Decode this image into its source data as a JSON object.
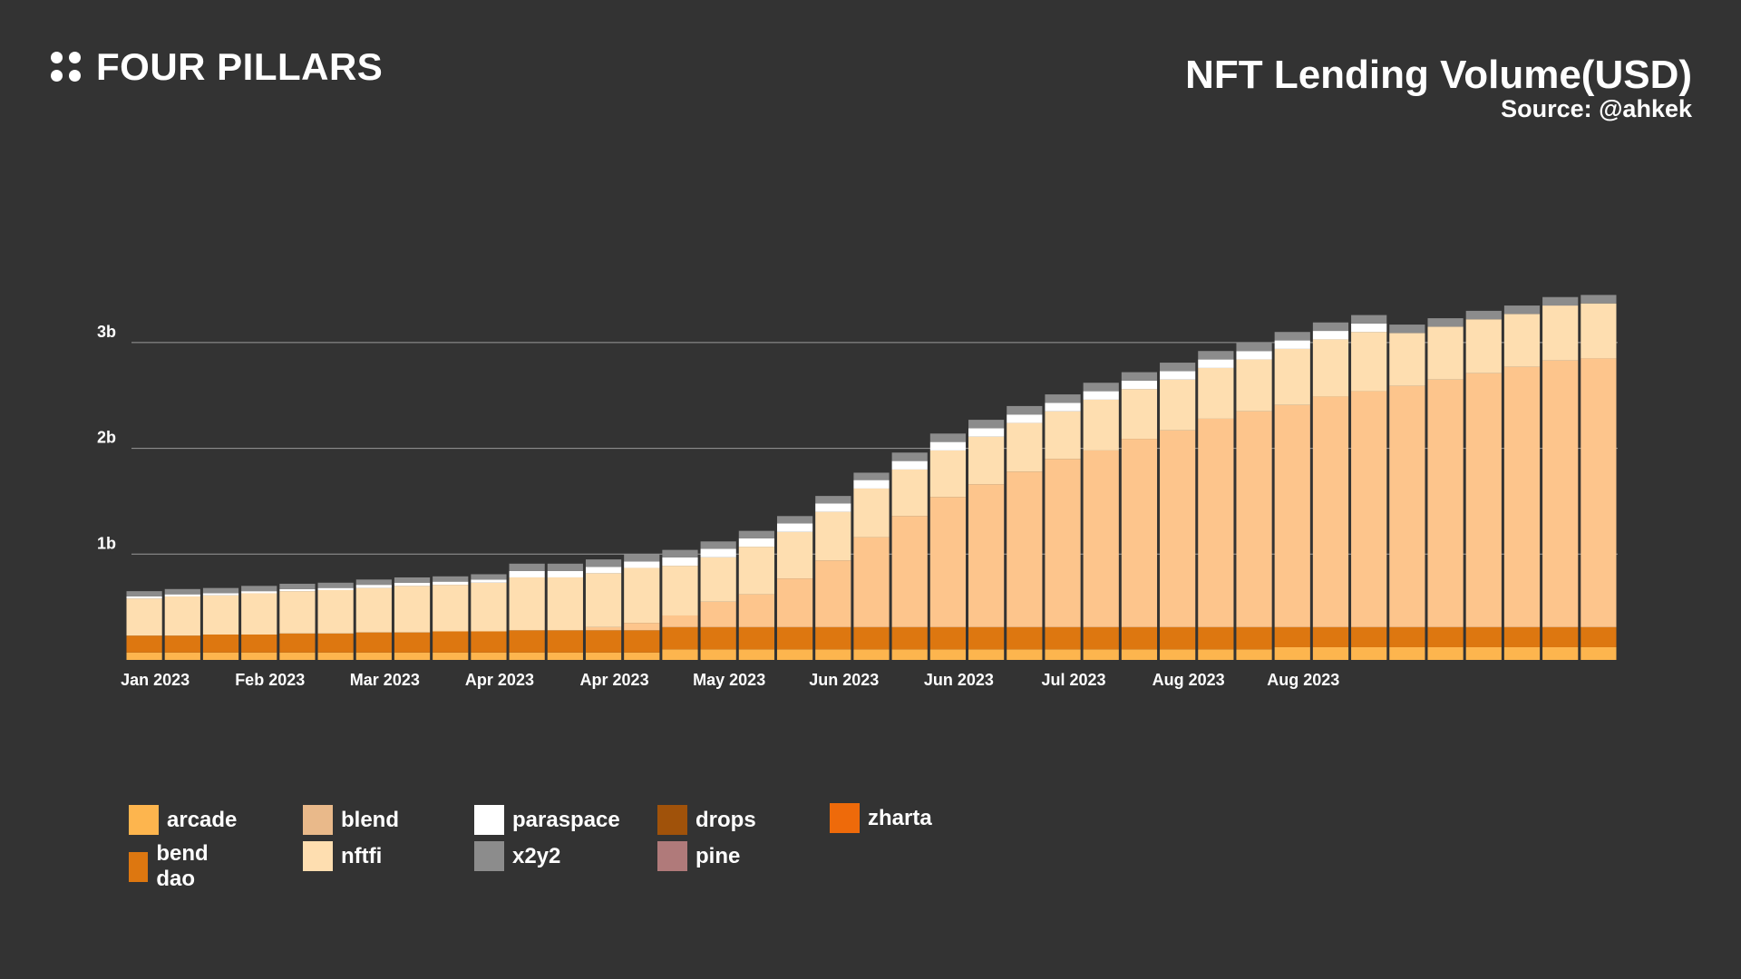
{
  "logo": {
    "text": "FOUR PILLARS"
  },
  "chart_data": {
    "type": "bar",
    "stacked": true,
    "title": "NFT Lending Volume(USD)",
    "subtitle": "Source: @ahkek",
    "xlabel": "",
    "ylabel": "",
    "ylim": [
      0,
      3.6
    ],
    "y_unit": "billion USD",
    "yticks": [
      {
        "value": 1,
        "label": "1b"
      },
      {
        "value": 2,
        "label": "2b"
      },
      {
        "value": 3,
        "label": "3b"
      }
    ],
    "grid": true,
    "legend_position": "bottom",
    "bar_count": 39,
    "xtick_labels": [
      {
        "index": 0,
        "label": "Jan 2023"
      },
      {
        "index": 3,
        "label": "Feb 2023"
      },
      {
        "index": 6,
        "label": "Mar 2023"
      },
      {
        "index": 9,
        "label": "Apr 2023"
      },
      {
        "index": 12,
        "label": "Apr 2023"
      },
      {
        "index": 15,
        "label": "May 2023"
      },
      {
        "index": 18,
        "label": "Jun 2023"
      },
      {
        "index": 21,
        "label": "Jun 2023"
      },
      {
        "index": 24,
        "label": "Jul 2023"
      },
      {
        "index": 27,
        "label": "Aug 2023"
      },
      {
        "index": 30,
        "label": "Aug 2023"
      }
    ],
    "series": [
      {
        "name": "arcade",
        "color": "#FDB54E",
        "values": [
          0.07,
          0.07,
          0.07,
          0.07,
          0.07,
          0.07,
          0.07,
          0.07,
          0.07,
          0.07,
          0.07,
          0.07,
          0.07,
          0.07,
          0.1,
          0.1,
          0.1,
          0.1,
          0.1,
          0.1,
          0.1,
          0.1,
          0.1,
          0.1,
          0.1,
          0.1,
          0.1,
          0.1,
          0.1,
          0.1,
          0.12,
          0.12,
          0.12,
          0.12,
          0.12,
          0.12,
          0.12,
          0.12,
          0.12
        ]
      },
      {
        "name": "bend dao",
        "color": "#DD7710",
        "values": [
          0.16,
          0.16,
          0.17,
          0.17,
          0.18,
          0.18,
          0.19,
          0.19,
          0.2,
          0.2,
          0.21,
          0.21,
          0.21,
          0.21,
          0.21,
          0.21,
          0.21,
          0.21,
          0.21,
          0.21,
          0.21,
          0.21,
          0.21,
          0.21,
          0.21,
          0.21,
          0.21,
          0.21,
          0.21,
          0.21,
          0.19,
          0.19,
          0.19,
          0.19,
          0.19,
          0.19,
          0.19,
          0.19,
          0.19
        ]
      },
      {
        "name": "blend",
        "color": "#FDC58C",
        "values": [
          0,
          0,
          0,
          0,
          0,
          0,
          0,
          0,
          0,
          0,
          0,
          0,
          0.03,
          0.07,
          0.11,
          0.24,
          0.31,
          0.46,
          0.63,
          0.85,
          1.05,
          1.23,
          1.35,
          1.47,
          1.59,
          1.67,
          1.78,
          1.86,
          1.97,
          2.04,
          2.1,
          2.18,
          2.23,
          2.28,
          2.34,
          2.4,
          2.46,
          2.52,
          2.54
        ]
      },
      {
        "name": "nftfi",
        "color": "#FEDEB0",
        "values": [
          0.35,
          0.37,
          0.37,
          0.39,
          0.4,
          0.41,
          0.42,
          0.44,
          0.44,
          0.46,
          0.5,
          0.5,
          0.51,
          0.52,
          0.47,
          0.42,
          0.45,
          0.44,
          0.46,
          0.46,
          0.44,
          0.44,
          0.45,
          0.46,
          0.45,
          0.48,
          0.47,
          0.48,
          0.48,
          0.49,
          0.53,
          0.54,
          0.56,
          0.5,
          0.5,
          0.51,
          0.5,
          0.52,
          0.52
        ]
      },
      {
        "name": "paraspace",
        "color": "#FFFFFF",
        "values": [
          0.02,
          0.02,
          0.02,
          0.02,
          0.02,
          0.02,
          0.03,
          0.03,
          0.03,
          0.03,
          0.06,
          0.06,
          0.06,
          0.06,
          0.08,
          0.08,
          0.08,
          0.08,
          0.08,
          0.08,
          0.08,
          0.08,
          0.08,
          0.08,
          0.08,
          0.08,
          0.08,
          0.08,
          0.08,
          0.08,
          0.08,
          0.08,
          0.08,
          0,
          0,
          0,
          0,
          0,
          0
        ]
      },
      {
        "name": "x2y2",
        "color": "#8C8C8C",
        "values": [
          0.05,
          0.05,
          0.05,
          0.05,
          0.05,
          0.05,
          0.05,
          0.05,
          0.05,
          0.05,
          0.07,
          0.07,
          0.07,
          0.07,
          0.07,
          0.07,
          0.07,
          0.07,
          0.07,
          0.07,
          0.08,
          0.08,
          0.08,
          0.08,
          0.08,
          0.08,
          0.08,
          0.08,
          0.08,
          0.08,
          0.08,
          0.08,
          0.08,
          0.08,
          0.08,
          0.08,
          0.08,
          0.08,
          0.08
        ]
      }
    ],
    "legend": [
      {
        "name": "arcade",
        "color": "#FDB54E"
      },
      {
        "name": "bend dao",
        "color": "#DD7710"
      },
      {
        "name": "blend",
        "color": "#E9B98A"
      },
      {
        "name": "nftfi",
        "color": "#FEDEB0"
      },
      {
        "name": "paraspace",
        "color": "#FFFFFF"
      },
      {
        "name": "x2y2",
        "color": "#8C8C8C"
      },
      {
        "name": "drops",
        "color": "#A0520A"
      },
      {
        "name": "pine",
        "color": "#B07A7A"
      },
      {
        "name": "zharta",
        "color": "#EE6A0A"
      }
    ]
  }
}
